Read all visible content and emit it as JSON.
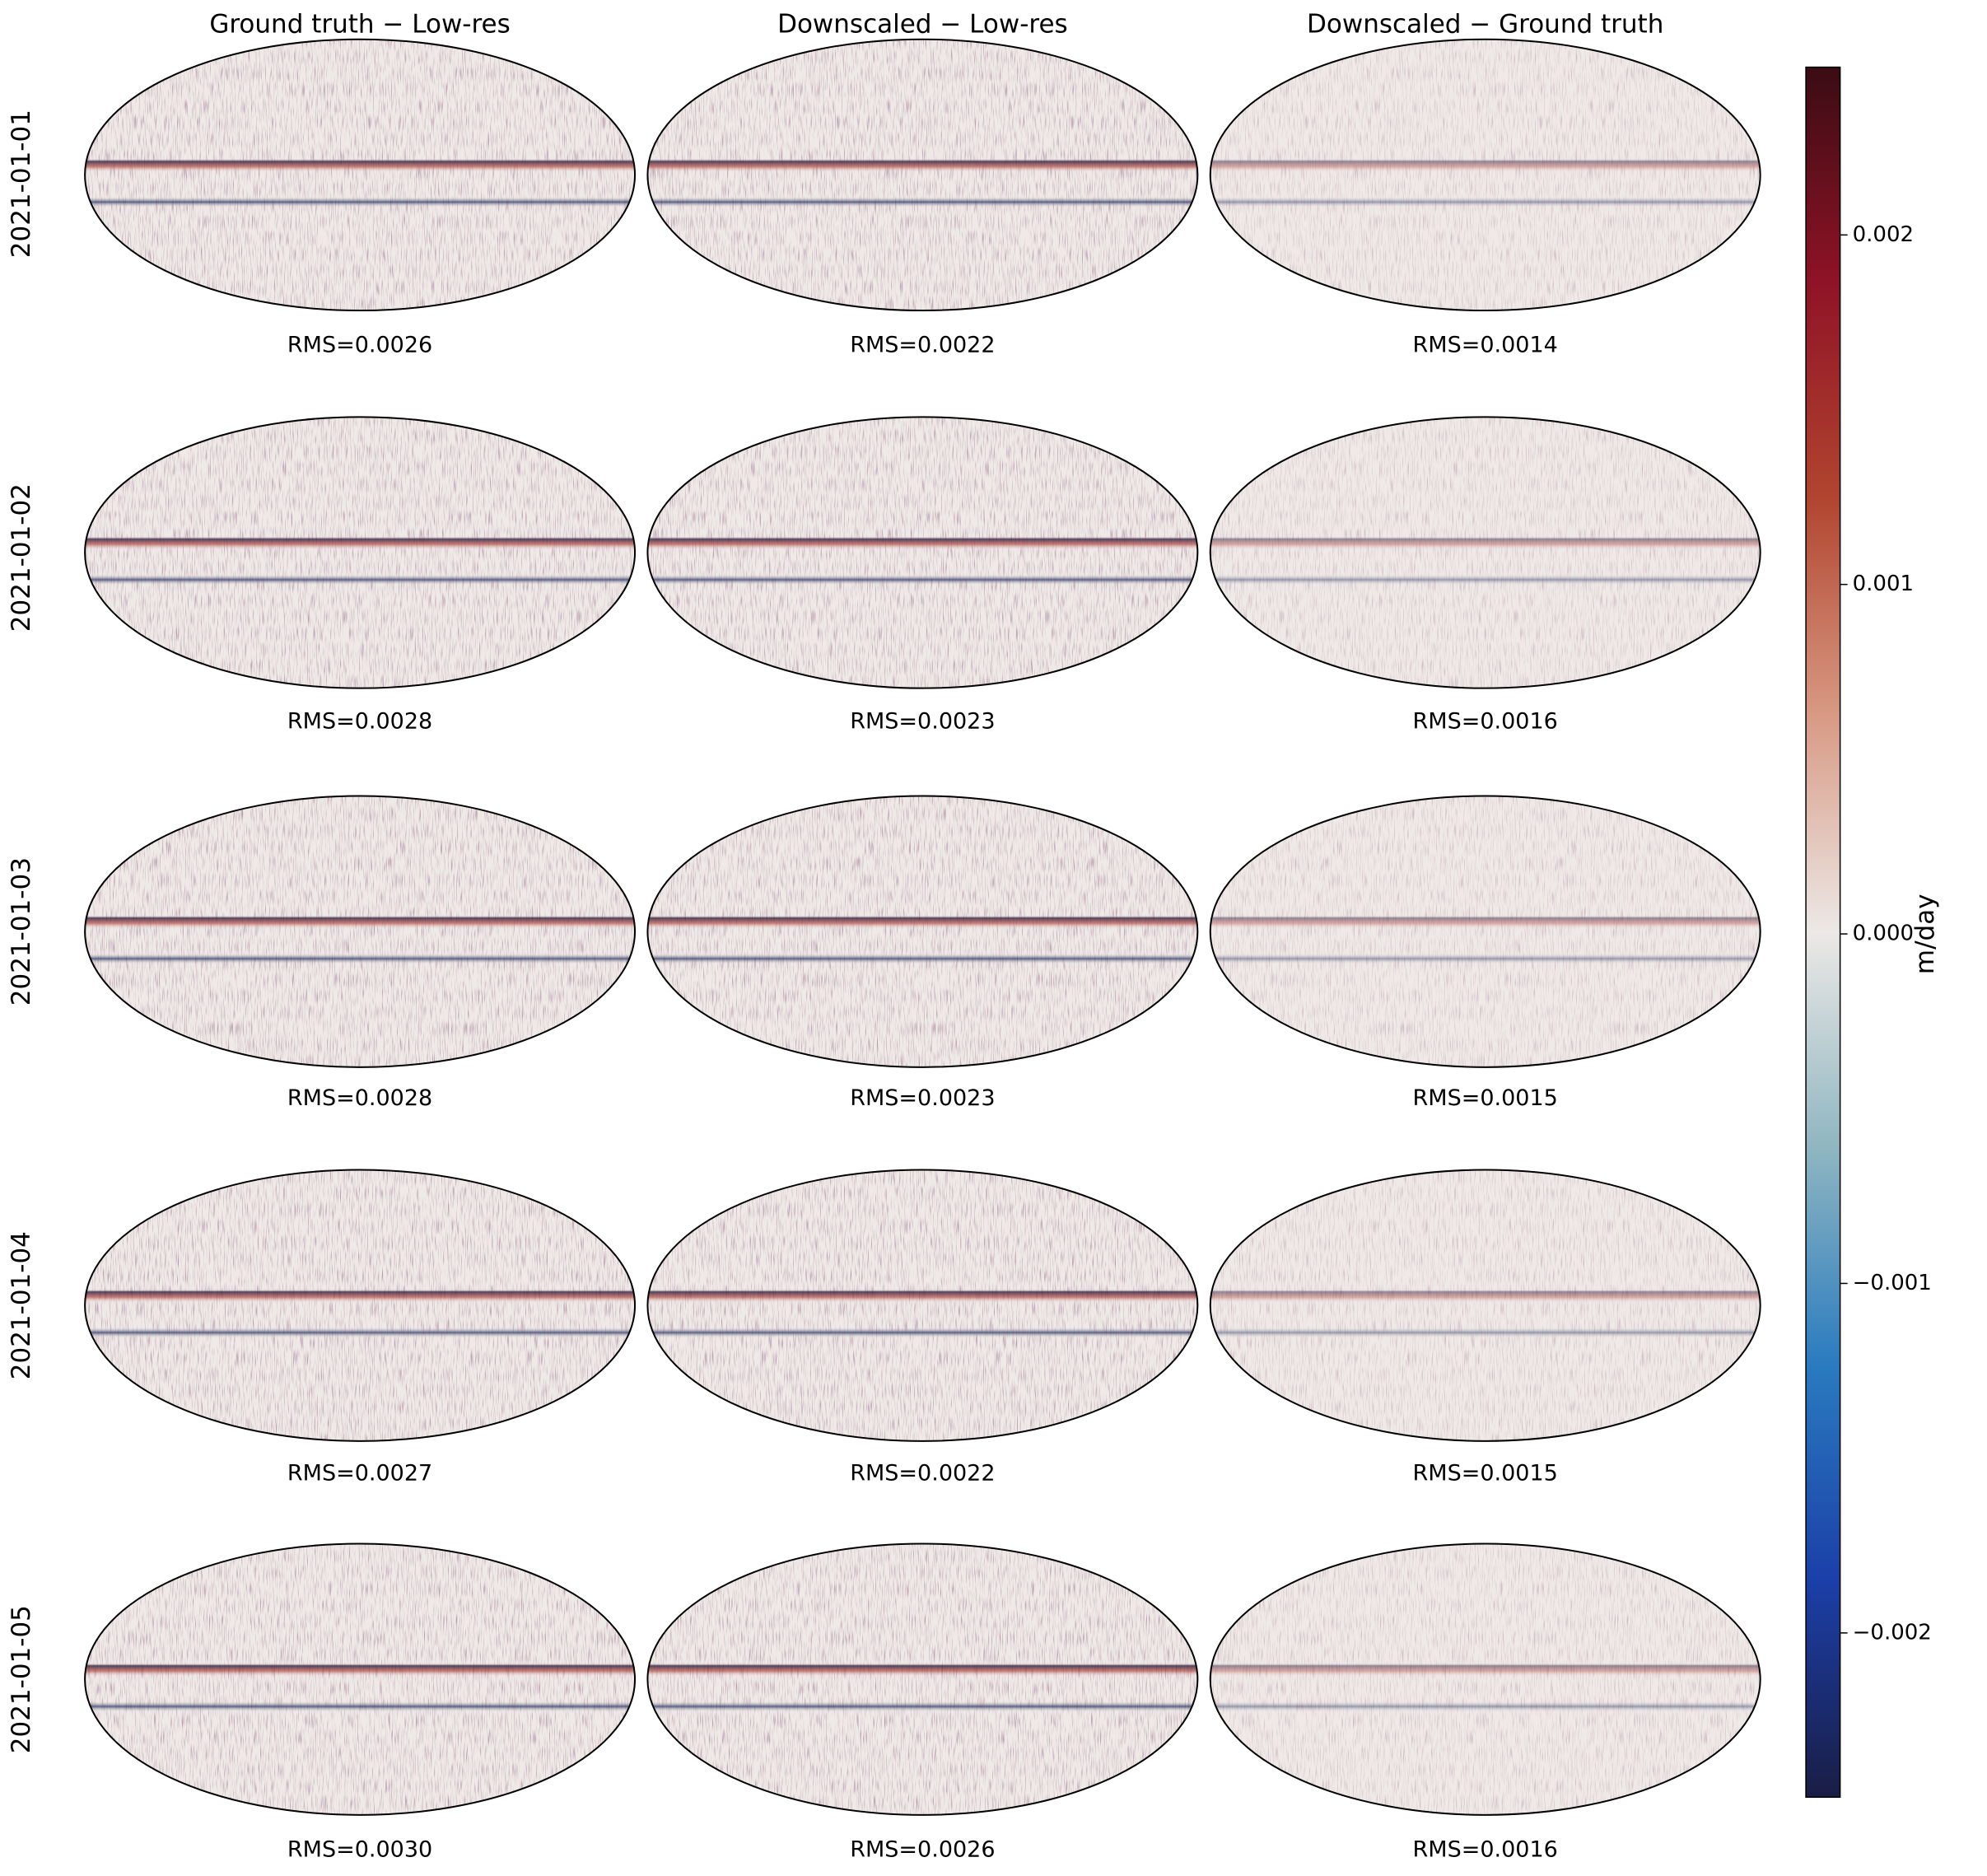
{
  "chart_data": {
    "type": "map-grid",
    "columns": [
      "Ground truth − Low-res",
      "Downscaled − Low-res",
      "Downscaled − Ground truth"
    ],
    "rows": [
      "2021-01-01",
      "2021-01-02",
      "2021-01-03",
      "2021-01-04",
      "2021-01-05"
    ],
    "panels": [
      [
        "RMS=0.0026",
        "RMS=0.0022",
        "RMS=0.0014"
      ],
      [
        "RMS=0.0028",
        "RMS=0.0023",
        "RMS=0.0016"
      ],
      [
        "RMS=0.0028",
        "RMS=0.0023",
        "RMS=0.0015"
      ],
      [
        "RMS=0.0027",
        "RMS=0.0022",
        "RMS=0.0015"
      ],
      [
        "RMS=0.0030",
        "RMS=0.0026",
        "RMS=0.0016"
      ]
    ],
    "colorbar": {
      "label": "m/day",
      "ylim": [
        -0.00247,
        0.00248
      ],
      "yticks": [
        {
          "value": -0.002,
          "label": "−0.002"
        },
        {
          "value": -0.001,
          "label": "−0.001"
        },
        {
          "value": 0,
          "label": "0.000"
        },
        0.001,
        0.002
      ],
      "colors": [
        "#1a1d45",
        "#1b3fa8",
        "#2a7bbf",
        "#8fb6c1",
        "#ece8e6",
        "#d89a84",
        "#b1452f",
        "#8f1326",
        "#3a0c14"
      ]
    }
  }
}
